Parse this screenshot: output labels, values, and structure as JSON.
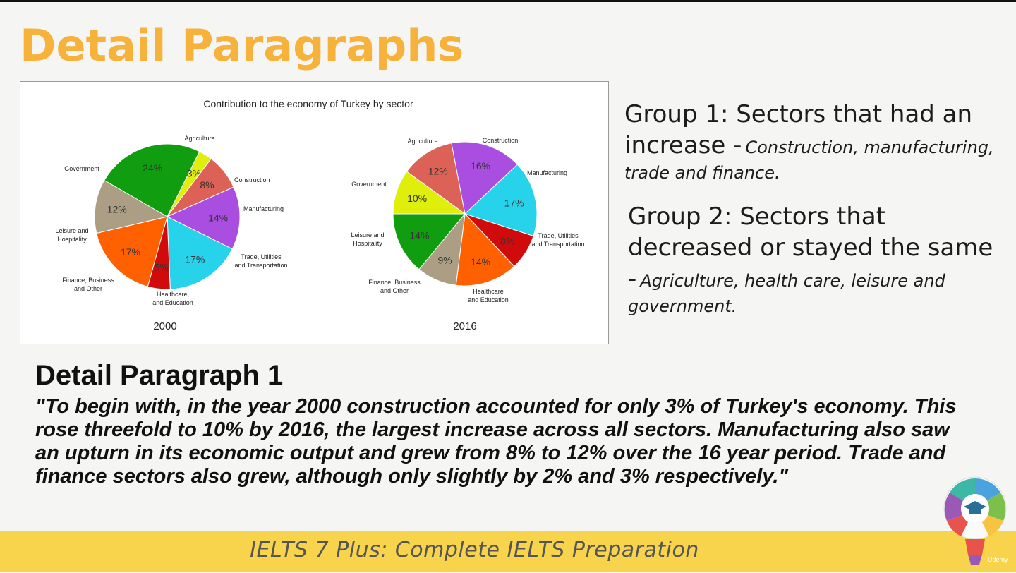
{
  "slide": {
    "title": "Detail Paragraphs",
    "footer": "IELTS 7 Plus: Complete IELTS Preparation"
  },
  "groups": {
    "group1": {
      "head": "Group 1: Sectors that had an increase -",
      "detail": "Construction, manufacturing, trade and finance."
    },
    "group2": {
      "head": "Group 2: Sectors that decreased or stayed the same -",
      "detail": "Agriculture, health care, leisure and government."
    }
  },
  "paragraph": {
    "heading": "Detail Paragraph 1",
    "quote": "\"To begin with, in the year 2000 construction accounted for only 3%  of Turkey's economy. This rose threefold to 10% by 2016, the largest increase across all sectors. Manufacturing also saw an upturn in its economic output and grew from 8% to 12% over the 16 year period. Trade and finance sectors also grew, although only slightly by 2% and 3% respectively.\""
  },
  "logo": {
    "icon": "graduation-cap-lightbulb-icon",
    "text": "Udemy"
  },
  "chart_data": {
    "type": "pie",
    "title": "Contribution to the economy of Turkey by sector",
    "charts": [
      {
        "year": "2000",
        "slices": [
          {
            "label": "Agriculture",
            "value": 24,
            "pct": "24%",
            "color": "#109e10"
          },
          {
            "label": "Construction",
            "value": 3,
            "pct": "3%",
            "color": "#e0ee0c"
          },
          {
            "label": "Manufacturing",
            "value": 8,
            "pct": "8%",
            "color": "#dc6157"
          },
          {
            "label": "Trade, Utilities and Transportation",
            "value": 14,
            "pct": "14%",
            "color": "#a94ee0"
          },
          {
            "label": "Healthcare, and Education",
            "value": 17,
            "pct": "17%",
            "color": "#27d3ea"
          },
          {
            "label": "Finance, Business and Other",
            "value": 5,
            "pct": "5%",
            "color": "#d10b0b"
          },
          {
            "label": "Leisure and Hospitality",
            "value": 17,
            "pct": "17%",
            "color": "#ff6100"
          },
          {
            "label": "Government",
            "value": 12,
            "pct": "12%",
            "color": "#ab9e85"
          }
        ]
      },
      {
        "year": "2016",
        "slices": [
          {
            "label": "Construction",
            "value": 10,
            "pct": "10%",
            "color": "#e0ee0c"
          },
          {
            "label": "Manufacturing",
            "value": 12,
            "pct": "12%",
            "color": "#dc6157"
          },
          {
            "label": "Trade, Utilities and Transportation",
            "value": 16,
            "pct": "16%",
            "color": "#a94ee0"
          },
          {
            "label": "Healthcare and Education",
            "value": 17,
            "pct": "17%",
            "color": "#27d3ea"
          },
          {
            "label": "Finance, Business and Other",
            "value": 8,
            "pct": "8%",
            "color": "#d10b0b"
          },
          {
            "label": "Leisure and Hospitality",
            "value": 14,
            "pct": "14%",
            "color": "#ff6100"
          },
          {
            "label": "Government",
            "value": 9,
            "pct": "9%",
            "color": "#ab9e85"
          },
          {
            "label": "Agriculture",
            "value": 14,
            "pct": "14%",
            "color": "#109e10"
          }
        ]
      }
    ]
  }
}
